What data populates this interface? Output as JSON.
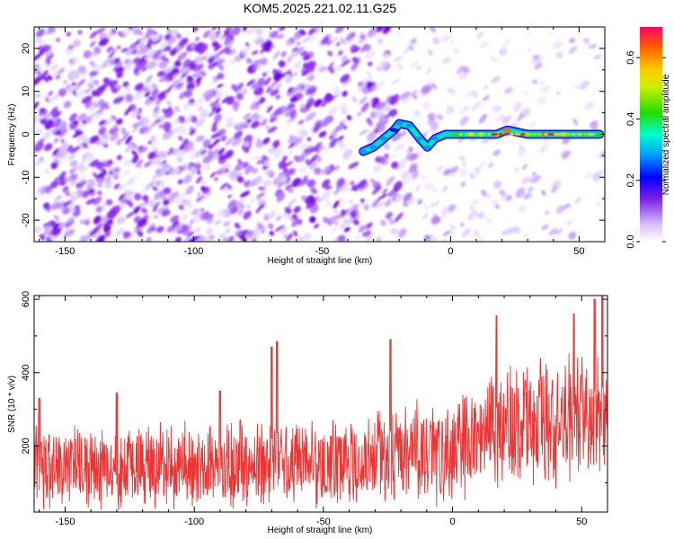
{
  "title": "KOM5.2025.221.02.11.G25",
  "chart_data": [
    {
      "type": "heatmap",
      "name": "spectrogram",
      "xlabel": "Height of straight line (km)",
      "ylabel": "Frequency (Hz)",
      "xlim": [
        -162,
        60
      ],
      "ylim": [
        -25,
        25
      ],
      "x_ticks": [
        -150,
        -100,
        -50,
        0,
        50
      ],
      "x_tick_labels": [
        "-150",
        "-100",
        "-50",
        "0",
        "50"
      ],
      "y_ticks": [
        -20,
        -10,
        0,
        10,
        20
      ],
      "y_tick_labels": [
        "-20",
        "-10",
        "0",
        "10",
        "20"
      ],
      "colorbar": {
        "label": "Normalized spectral amplitude",
        "range": [
          0.0,
          0.7
        ],
        "ticks": [
          0.0,
          0.2,
          0.4,
          0.6
        ],
        "tick_labels": [
          "0.0",
          "0.2",
          "0.4",
          "0.6"
        ]
      },
      "signal_track": [
        {
          "x": -34,
          "y": -4,
          "amp": 0.3
        },
        {
          "x": -30,
          "y": -3,
          "amp": 0.25
        },
        {
          "x": -26,
          "y": -1,
          "amp": 0.25
        },
        {
          "x": -22,
          "y": 1,
          "amp": 0.22
        },
        {
          "x": -20,
          "y": 2.5,
          "amp": 0.25
        },
        {
          "x": -16,
          "y": 2,
          "amp": 0.28
        },
        {
          "x": -12,
          "y": -1,
          "amp": 0.28
        },
        {
          "x": -9,
          "y": -3,
          "amp": 0.28
        },
        {
          "x": -6,
          "y": -1,
          "amp": 0.3
        },
        {
          "x": -2,
          "y": 0,
          "amp": 0.35
        },
        {
          "x": 2,
          "y": 0,
          "amp": 0.45
        },
        {
          "x": 8,
          "y": 0,
          "amp": 0.55
        },
        {
          "x": 12,
          "y": 0,
          "amp": 0.55
        },
        {
          "x": 18,
          "y": 0,
          "amp": 0.6
        },
        {
          "x": 22,
          "y": 1,
          "amp": 0.65
        },
        {
          "x": 30,
          "y": 0,
          "amp": 0.6
        },
        {
          "x": 36,
          "y": 0,
          "amp": 0.68
        },
        {
          "x": 44,
          "y": 0,
          "amp": 0.6
        },
        {
          "x": 52,
          "y": 0,
          "amp": 0.5
        },
        {
          "x": 58,
          "y": 0,
          "amp": 0.45
        }
      ]
    },
    {
      "type": "line",
      "name": "snr",
      "xlabel": "Height of straight line (km)",
      "ylabel": "SNR (10 * v/v)",
      "xlim": [
        -162,
        60
      ],
      "ylim": [
        20,
        610
      ],
      "x_ticks": [
        -150,
        -100,
        -50,
        0,
        50
      ],
      "x_tick_labels": [
        "-150",
        "-100",
        "-50",
        "0",
        "50"
      ],
      "y_ticks": [
        200,
        400,
        600
      ],
      "y_tick_labels": [
        "200",
        "400",
        "600"
      ],
      "series": [
        {
          "name": "SNR",
          "color": "#ee3333",
          "trend": [
            {
              "x": -160,
              "mean": 140,
              "spread": 110
            },
            {
              "x": -100,
              "mean": 145,
              "spread": 110
            },
            {
              "x": -50,
              "mean": 150,
              "spread": 115
            },
            {
              "x": -20,
              "mean": 175,
              "spread": 125
            },
            {
              "x": 0,
              "mean": 190,
              "spread": 130
            },
            {
              "x": 20,
              "mean": 250,
              "spread": 160
            },
            {
              "x": 50,
              "mean": 265,
              "spread": 165
            },
            {
              "x": 60,
              "mean": 250,
              "spread": 160
            }
          ],
          "peaks": [
            {
              "x": -160,
              "y": 330
            },
            {
              "x": -130,
              "y": 345
            },
            {
              "x": -90,
              "y": 350
            },
            {
              "x": -70,
              "y": 470
            },
            {
              "x": -68,
              "y": 485
            },
            {
              "x": -24,
              "y": 490
            },
            {
              "x": 17,
              "y": 555
            },
            {
              "x": 47,
              "y": 560
            },
            {
              "x": 55,
              "y": 600
            },
            {
              "x": 58,
              "y": 610
            }
          ]
        }
      ]
    }
  ]
}
